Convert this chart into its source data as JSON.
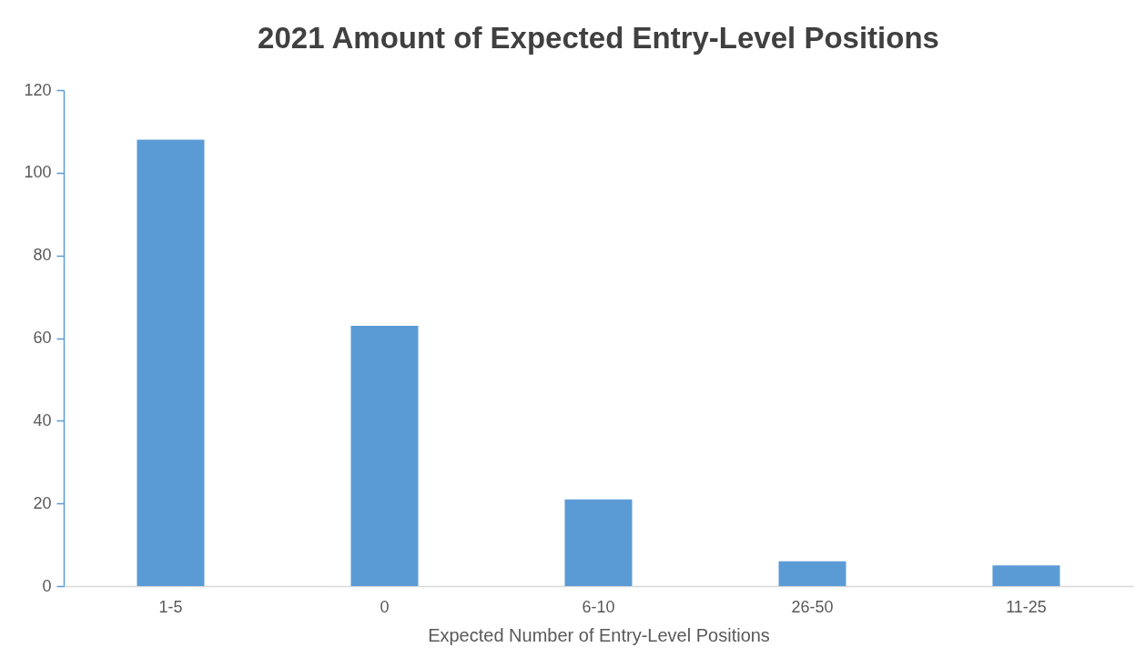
{
  "chart_data": {
    "type": "bar",
    "title": "2021 Amount of Expected Entry-Level Positions",
    "xlabel": "Expected Number of Entry-Level Positions",
    "categories": [
      "1-5",
      "0",
      "6-10",
      "26-50",
      "11-25"
    ],
    "values": [
      108,
      63,
      21,
      6,
      5
    ],
    "color": "#5b9bd5",
    "ylim": [
      0,
      120
    ],
    "yticks": [
      0,
      20,
      40,
      60,
      80,
      100,
      120
    ],
    "grid": false
  }
}
